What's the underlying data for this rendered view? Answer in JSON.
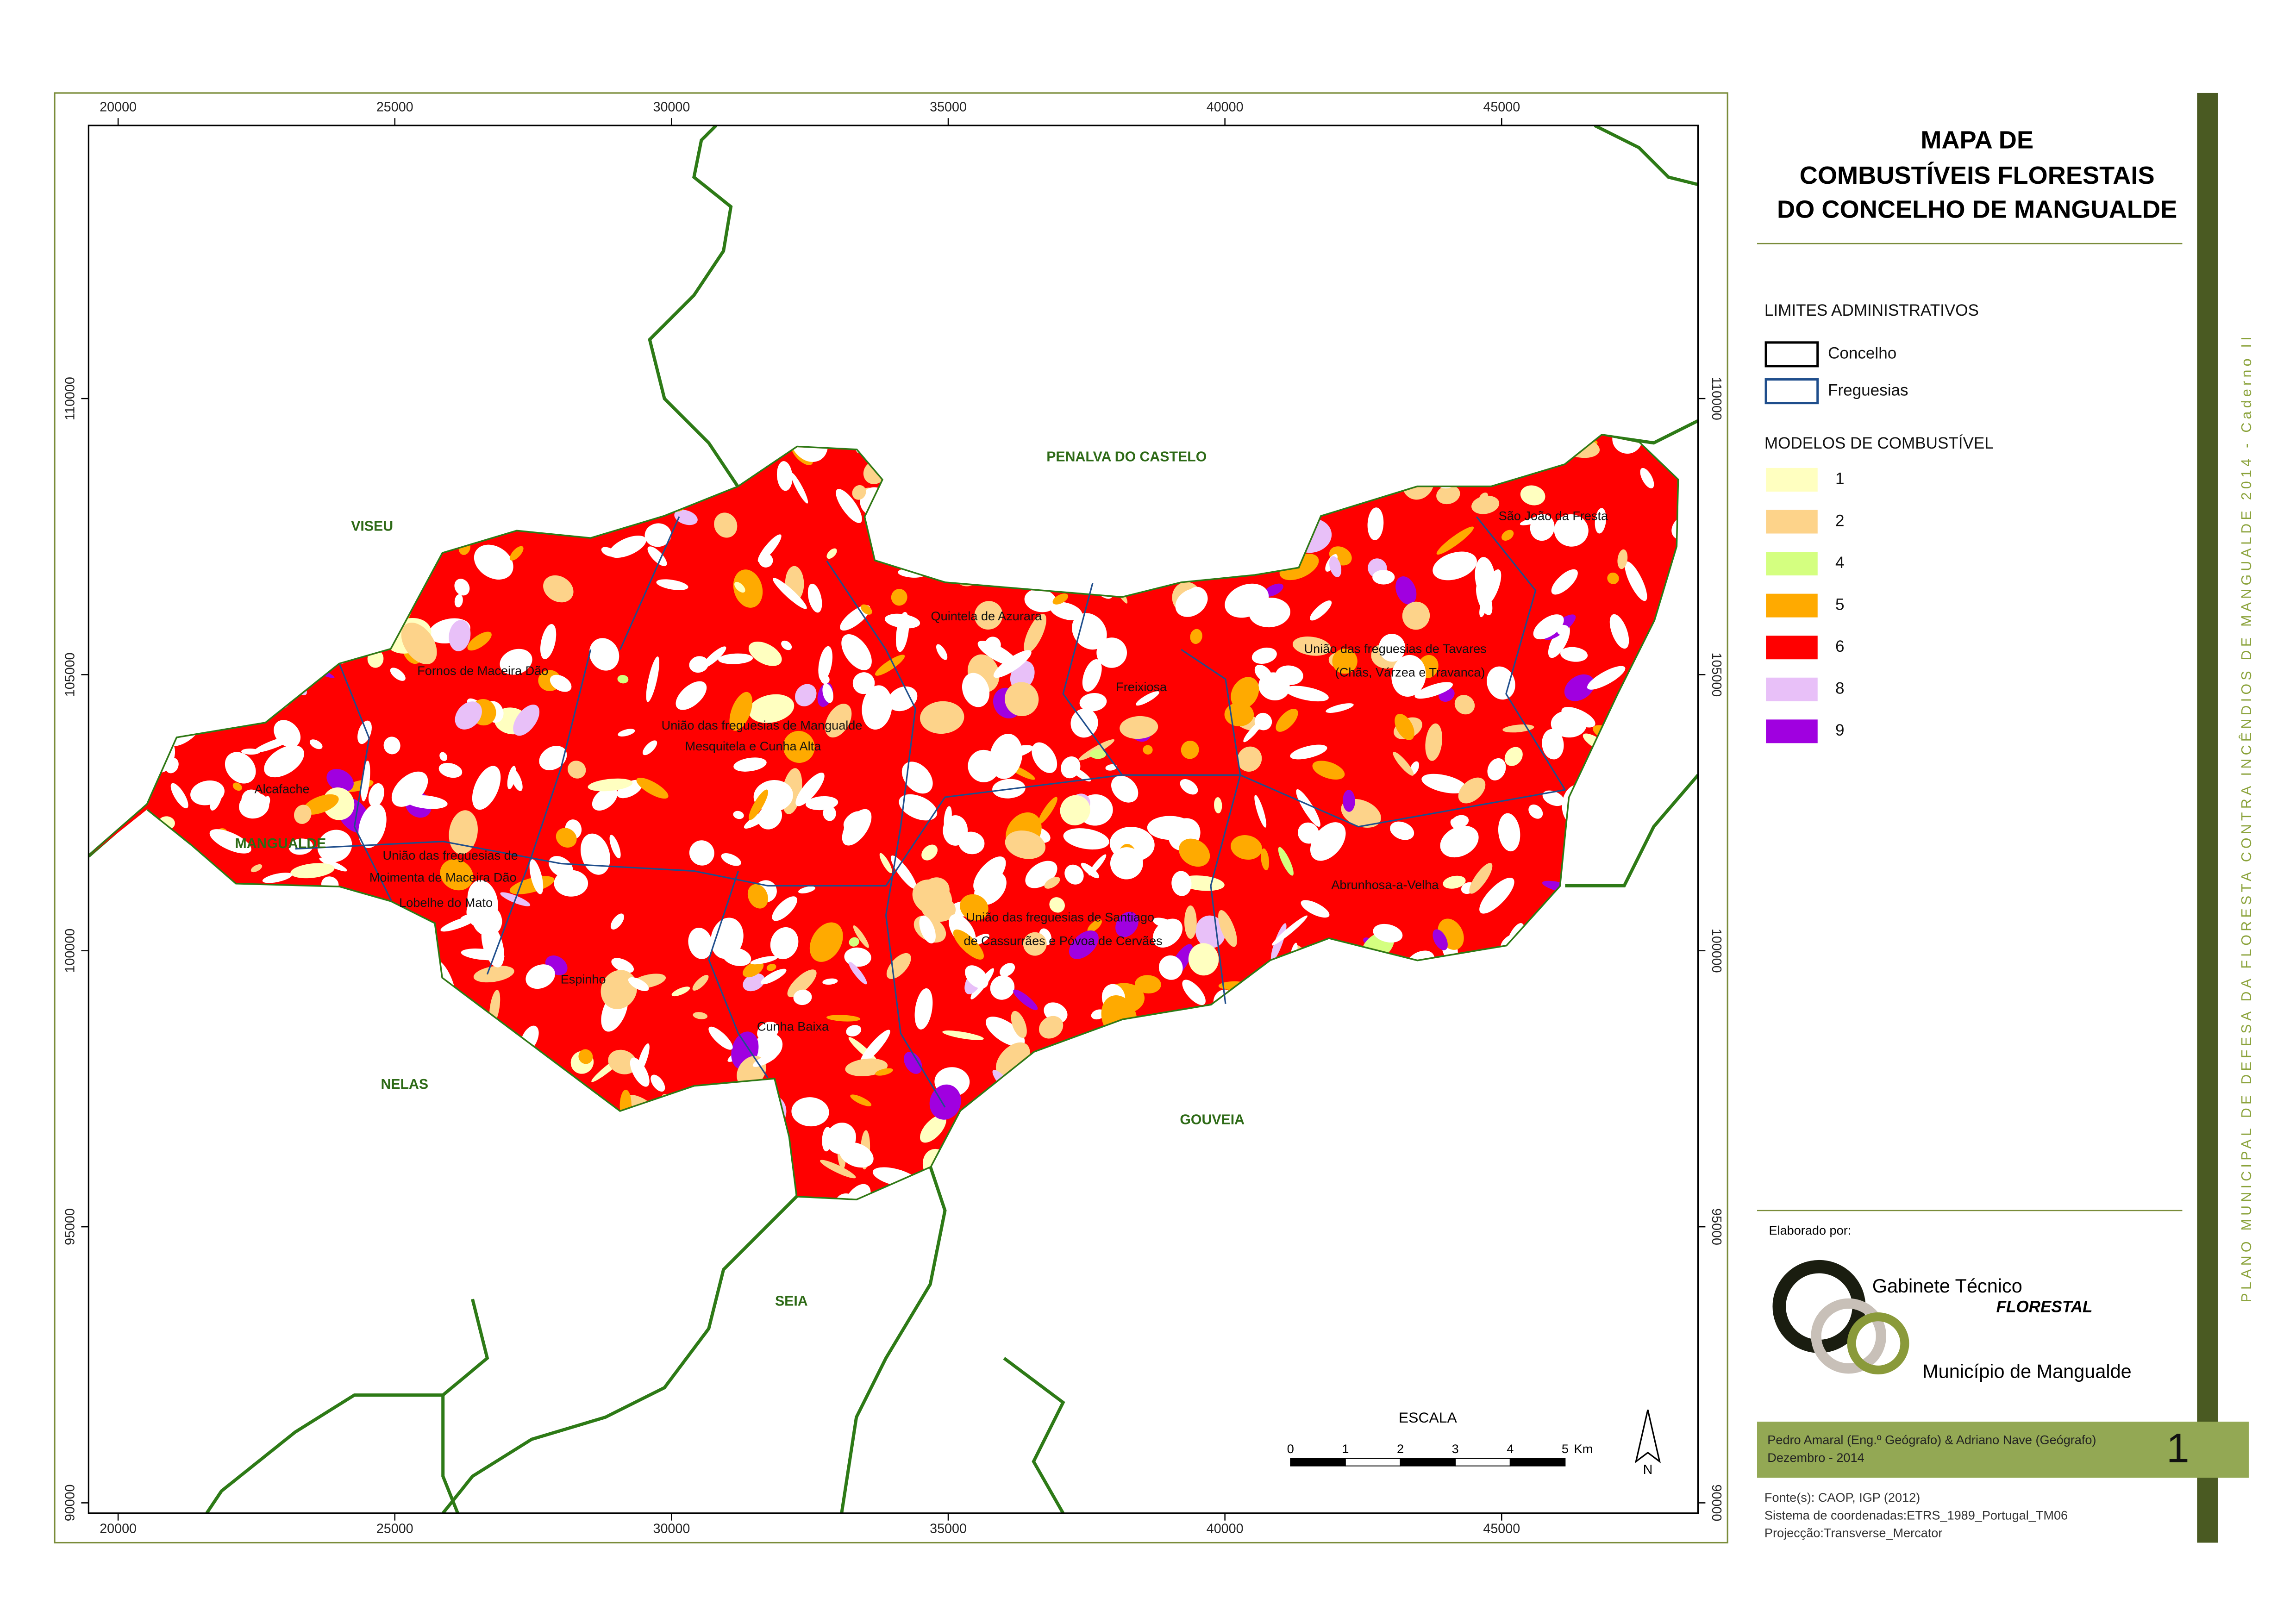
{
  "title": [
    "MAPA DE",
    "COMBUSTÍVEIS FLORESTAIS",
    "DO CONCELHO DE MANGUALDE"
  ],
  "side_text": "PLANO MUNICIPAL DE DEFESA DA FLORESTA CONTRA INCÊNDIOS DE MANGUALDE 2014 - Caderno II",
  "map": {
    "x_ticks": [
      20000,
      25000,
      30000,
      35000,
      40000,
      45000
    ],
    "y_ticks": [
      90000,
      95000,
      100000,
      105000,
      110000
    ],
    "neighbours": [
      "VISEU",
      "PENALVA DO CASTELO",
      "NELAS",
      "GOUVEIA",
      "SEIA",
      "MANGUALDE"
    ],
    "parishes": [
      "Quintela de Azurara",
      "Fornos de Maceira Dão",
      "Freixiosa",
      "União das freguesias de Tavares",
      "(Chãs, Várzea e Travanca)",
      "São João da Fresta",
      "União das freguesias de Mangualde",
      "Mesquitela e Cunha Alta",
      "Alcafache",
      "União das freguesias de",
      "Moimenta de Maceira Dão",
      "Lobelhe do Mato",
      "União das freguesias de Santiago",
      "de Cassurrães e Póvoa de Cervães",
      "Abrunhosa-a-Velha",
      "Espinho",
      "Cunha Baixa"
    ]
  },
  "scale": {
    "title": "ESCALA",
    "ticks": [
      0,
      1,
      2,
      3,
      4,
      5
    ],
    "unit": "Km",
    "north": "N"
  },
  "legend": {
    "admin_title": "LIMITES ADMINISTRATIVOS",
    "admin": [
      {
        "label": "Concelho",
        "color": "#000000"
      },
      {
        "label": "Freguesias",
        "color": "#1f4e8c"
      }
    ],
    "fuel_title": "MODELOS DE COMBUSTÍVEL",
    "fuel": [
      {
        "label": "1",
        "color": "#ffffc0"
      },
      {
        "label": "2",
        "color": "#fdd38a"
      },
      {
        "label": "4",
        "color": "#d4ff80"
      },
      {
        "label": "5",
        "color": "#ffaa00"
      },
      {
        "label": "6",
        "color": "#ff0000"
      },
      {
        "label": "8",
        "color": "#e8c0f8"
      },
      {
        "label": "9",
        "color": "#a000e0"
      }
    ]
  },
  "credits": {
    "elaborated": "Elaborado por:",
    "org1": "Gabinete Técnico",
    "org2": "FLORESTAL",
    "org3": "Município de Mangualde",
    "authors": "Pedro Amaral (Eng.º Geógrafo) & Adriano Nave (Geógrafo)",
    "date": "Dezembro - 2014",
    "page": "1"
  },
  "sources": [
    "Fonte(s): CAOP, IGP (2012)",
    "Sistema de coordenadas:ETRS_1989_Portugal_TM06",
    "Projecção:Transverse_Mercator"
  ]
}
